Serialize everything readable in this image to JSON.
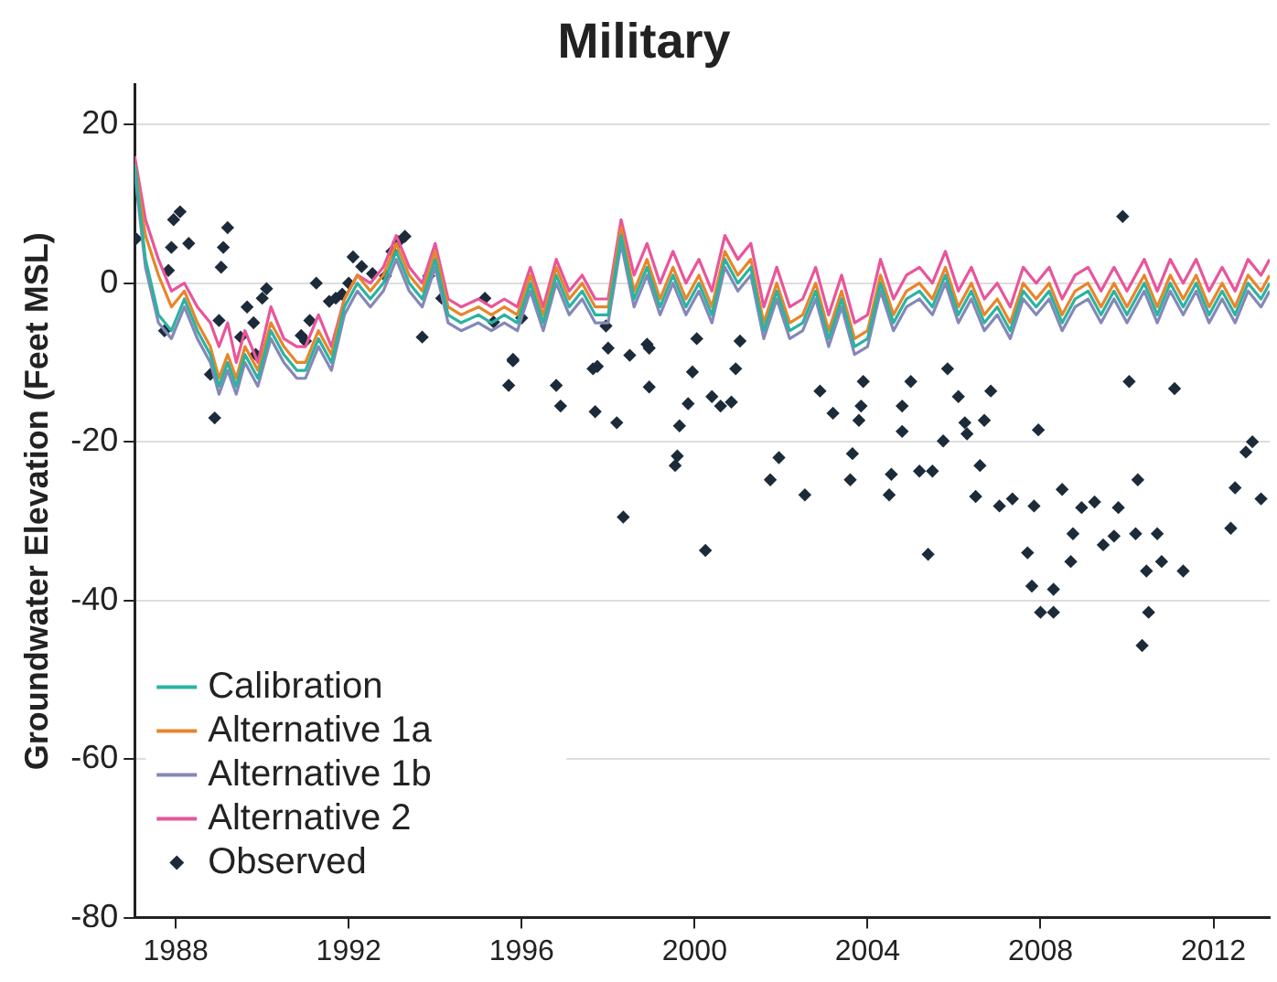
{
  "chart_data": {
    "type": "line",
    "title": "Military",
    "ylabel": "Groundwater Elevation (Feet MSL)",
    "x": [
      1987.05,
      1987.3,
      1987.6,
      1987.9,
      1988.2,
      1988.5,
      1988.8,
      1989.0,
      1989.2,
      1989.4,
      1989.6,
      1989.9,
      1990.2,
      1990.5,
      1990.8,
      1991.0,
      1991.3,
      1991.6,
      1991.9,
      1992.2,
      1992.5,
      1992.8,
      1993.1,
      1993.4,
      1993.7,
      1994.0,
      1994.3,
      1994.6,
      1995.0,
      1995.3,
      1995.6,
      1995.9,
      1996.2,
      1996.5,
      1996.8,
      1997.1,
      1997.4,
      1997.7,
      1998.0,
      1998.3,
      1998.6,
      1998.9,
      1999.2,
      1999.5,
      1999.8,
      2000.1,
      2000.4,
      2000.7,
      2001.0,
      2001.3,
      2001.6,
      2001.9,
      2002.2,
      2002.5,
      2002.8,
      2003.1,
      2003.4,
      2003.7,
      2004.0,
      2004.3,
      2004.6,
      2004.9,
      2005.2,
      2005.5,
      2005.8,
      2006.1,
      2006.4,
      2006.7,
      2007.0,
      2007.3,
      2007.6,
      2007.9,
      2008.2,
      2008.5,
      2008.8,
      2009.1,
      2009.4,
      2009.7,
      2010.0,
      2010.4,
      2010.7,
      2011.0,
      2011.3,
      2011.6,
      2011.9,
      2012.2,
      2012.5,
      2012.8,
      2013.1,
      2013.3
    ],
    "series": [
      {
        "name": "Calibration",
        "color": "#2ab3a0",
        "values": [
          15,
          3,
          -4,
          -6,
          -2,
          -6,
          -9,
          -13,
          -10,
          -13,
          -9,
          -12,
          -6,
          -9,
          -11,
          -11,
          -7,
          -10,
          -3,
          0,
          -2,
          0,
          4,
          0,
          -2,
          3,
          -4,
          -5,
          -4,
          -5,
          -4,
          -5,
          0,
          -5,
          1,
          -3,
          -1,
          -4,
          -4,
          6,
          -2,
          2,
          -3,
          1,
          -3,
          0,
          -4,
          3,
          0,
          2,
          -6,
          -1,
          -6,
          -5,
          -1,
          -7,
          -2,
          -8,
          -7,
          0,
          -5,
          -2,
          -1,
          -3,
          1,
          -4,
          -1,
          -5,
          -3,
          -6,
          -1,
          -3,
          -1,
          -5,
          -2,
          -1,
          -4,
          -1,
          -4,
          0,
          -4,
          0,
          -3,
          0,
          -4,
          -1,
          -4,
          0,
          -2,
          0
        ]
      },
      {
        "name": "Alternative 1a",
        "color": "#e8852a",
        "values": [
          15,
          6,
          1,
          -3,
          -1,
          -5,
          -8,
          -12,
          -9,
          -12,
          -8,
          -11,
          -5,
          -8,
          -10,
          -10,
          -6,
          -9,
          -2,
          1,
          -1,
          1,
          5,
          1,
          -1,
          4,
          -3,
          -4,
          -3,
          -4,
          -3,
          -4,
          1,
          -4,
          2,
          -2,
          0,
          -3,
          -3,
          7,
          -1,
          3,
          -2,
          2,
          -2,
          1,
          -3,
          4,
          1,
          3,
          -5,
          0,
          -5,
          -4,
          0,
          -6,
          -1,
          -7,
          -6,
          1,
          -4,
          -1,
          0,
          -2,
          2,
          -3,
          0,
          -4,
          -2,
          -5,
          0,
          -2,
          0,
          -4,
          -1,
          0,
          -3,
          0,
          -3,
          1,
          -3,
          1,
          -2,
          1,
          -3,
          0,
          -3,
          1,
          -1,
          1
        ]
      },
      {
        "name": "Alternative 1b",
        "color": "#8488b8",
        "values": [
          14,
          2,
          -5,
          -7,
          -3,
          -7,
          -10,
          -14,
          -11,
          -14,
          -10,
          -13,
          -7,
          -10,
          -12,
          -12,
          -8,
          -11,
          -4,
          -1,
          -3,
          -1,
          3,
          -1,
          -3,
          2,
          -5,
          -6,
          -5,
          -6,
          -5,
          -6,
          -1,
          -6,
          0,
          -4,
          -2,
          -5,
          -5,
          5,
          -3,
          1,
          -4,
          0,
          -4,
          -1,
          -5,
          2,
          -1,
          1,
          -7,
          -2,
          -7,
          -6,
          -2,
          -8,
          -3,
          -9,
          -8,
          -1,
          -6,
          -3,
          -2,
          -4,
          0,
          -5,
          -2,
          -6,
          -4,
          -7,
          -2,
          -4,
          -2,
          -6,
          -3,
          -2,
          -5,
          -2,
          -5,
          -1,
          -5,
          -1,
          -4,
          -1,
          -5,
          -2,
          -5,
          -1,
          -3,
          -1
        ]
      },
      {
        "name": "Alternative 2",
        "color": "#e8559a",
        "values": [
          16,
          8,
          3,
          -1,
          0,
          -3,
          -5,
          -8,
          -5,
          -10,
          -6,
          -10,
          -3,
          -7,
          -8,
          -8,
          -4,
          -8,
          -2,
          1,
          0,
          2,
          6,
          2,
          0,
          5,
          -2,
          -3,
          -2,
          -3,
          -2,
          -3,
          2,
          -3,
          3,
          -1,
          1,
          -2,
          -2,
          8,
          1,
          5,
          0,
          4,
          0,
          3,
          -1,
          6,
          3,
          5,
          -3,
          2,
          -3,
          -2,
          2,
          -4,
          1,
          -5,
          -4,
          3,
          -2,
          1,
          2,
          0,
          4,
          -1,
          2,
          -2,
          0,
          -3,
          2,
          0,
          2,
          -2,
          1,
          2,
          -1,
          2,
          -1,
          3,
          -1,
          3,
          0,
          3,
          -1,
          2,
          -1,
          3,
          1,
          3
        ]
      },
      {
        "name": "Observed",
        "type": "scatter",
        "marker": "diamond",
        "color": "#1c2b3a",
        "x": [
          1987.08,
          1987.74,
          1987.83,
          1987.9,
          1987.95,
          1988.1,
          1988.3,
          1988.8,
          1988.9,
          1989.0,
          1989.05,
          1989.1,
          1989.2,
          1989.5,
          1989.65,
          1989.8,
          1989.85,
          1990.0,
          1990.1,
          1990.9,
          1991.0,
          1991.1,
          1991.25,
          1991.55,
          1991.7,
          1991.85,
          1992.0,
          1992.1,
          1992.3,
          1992.55,
          1992.85,
          1993.0,
          1993.15,
          1993.3,
          1993.7,
          1993.85,
          1994.15,
          1995.15,
          1995.35,
          1995.7,
          1995.8,
          1995.8,
          1996.0,
          1996.8,
          1996.9,
          1997.65,
          1997.7,
          1997.75,
          1997.95,
          1998.0,
          1998.2,
          1998.35,
          1998.5,
          1998.9,
          1998.95,
          1998.95,
          1999.55,
          1999.6,
          1999.65,
          1999.85,
          1999.95,
          2000.05,
          2000.25,
          2000.4,
          2000.6,
          2000.85,
          2000.95,
          2001.05,
          2001.75,
          2001.95,
          2002.55,
          2002.9,
          2003.2,
          2003.6,
          2003.65,
          2003.8,
          2003.85,
          2003.9,
          2004.5,
          2004.55,
          2004.8,
          2004.8,
          2005.0,
          2005.2,
          2005.4,
          2005.5,
          2005.75,
          2005.85,
          2006.1,
          2006.25,
          2006.3,
          2006.5,
          2006.6,
          2006.7,
          2006.85,
          2007.05,
          2007.35,
          2007.7,
          2007.8,
          2007.85,
          2007.95,
          2008.0,
          2008.3,
          2008.3,
          2008.5,
          2008.7,
          2008.75,
          2008.95,
          2009.25,
          2009.45,
          2009.7,
          2009.8,
          2009.9,
          2010.05,
          2010.2,
          2010.25,
          2010.35,
          2010.45,
          2010.5,
          2010.7,
          2010.8,
          2011.1,
          2011.3,
          2012.4,
          2012.5,
          2012.75,
          2012.9,
          2013.1
        ],
        "values": [
          5.6,
          -6,
          1.6,
          4.5,
          8,
          9,
          5,
          -11.5,
          -17,
          -4.7,
          2,
          4.5,
          7,
          -6.8,
          -3,
          -5,
          -9,
          -1.9,
          -0.7,
          -6.6,
          -7.3,
          -4.7,
          0,
          -2.3,
          -1.9,
          -1.4,
          0,
          3.3,
          2.1,
          1.2,
          0.9,
          4,
          5.2,
          5.9,
          -6.8,
          0.9,
          -1.9,
          -1.9,
          -4.9,
          -12.9,
          -9.6,
          -9.8,
          -4.4,
          -12.9,
          -15.5,
          -10.8,
          -16.2,
          -10.5,
          -5.4,
          -8.2,
          -17.6,
          -29.5,
          -9.1,
          -7.7,
          -8.2,
          -13.1,
          -23,
          -21.8,
          -18,
          -15.2,
          -11.2,
          -7,
          -33.7,
          -14.3,
          -15.5,
          -15,
          -10.8,
          -7.3,
          -24.8,
          -22,
          -26.7,
          -13.6,
          -16.4,
          -24.8,
          -21.5,
          -17.3,
          -15.5,
          -12.4,
          -26.7,
          -24.1,
          -18.7,
          -15.5,
          -12.4,
          -23.7,
          -34.2,
          -23.7,
          -19.9,
          -10.8,
          -14.3,
          -17.6,
          -19,
          -26.9,
          -23,
          -17.3,
          -13.6,
          -28.1,
          -27.2,
          -34,
          -38.2,
          -28.1,
          -18.5,
          -41.5,
          -38.6,
          -41.5,
          -26,
          -35.1,
          -31.6,
          -28.3,
          -27.6,
          -33,
          -31.9,
          -28.3,
          8.4,
          -12.4,
          -31.6,
          -24.8,
          -45.7,
          -36.3,
          -41.5,
          -31.6,
          -35.1,
          -13.3,
          -36.3,
          -30.9,
          -25.8,
          -21.3,
          -20,
          -27.2
        ]
      }
    ],
    "xlim": [
      1987.05,
      2013.3
    ],
    "xticks": [
      1988,
      1992,
      1996,
      2000,
      2004,
      2008,
      2012
    ],
    "ylim": [
      -80,
      25
    ],
    "yticks": [
      -80,
      -60,
      -40,
      -20,
      0,
      20
    ],
    "grid": "y",
    "legend": "bottom left"
  }
}
